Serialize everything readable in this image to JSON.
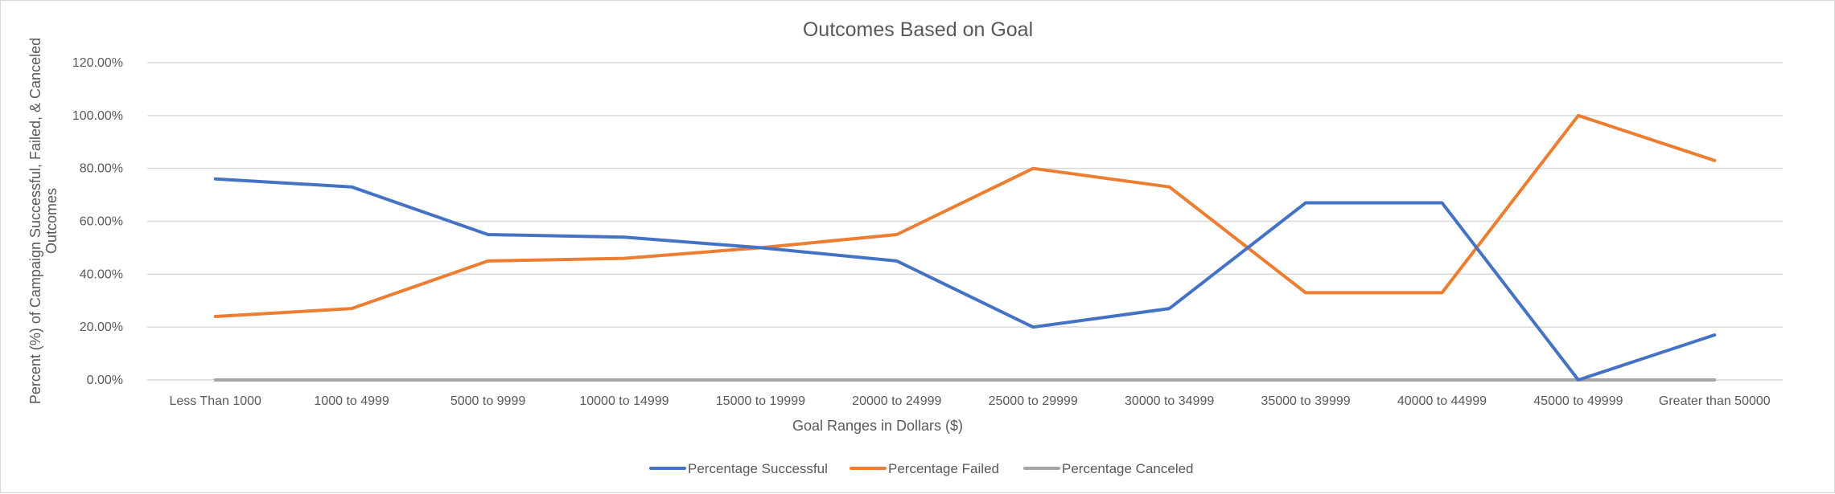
{
  "chart_data": {
    "type": "line",
    "title": "Outcomes Based on Goal",
    "xlabel": "Goal Ranges in Dollars ($)",
    "ylabel": "Percent (%) of Campaign Successful, Failed, & Canceled Outcomes",
    "ylim": [
      0,
      1.2
    ],
    "yticks": [
      0,
      0.2,
      0.4,
      0.6,
      0.8,
      1.0,
      1.2
    ],
    "ytick_labels": [
      "0.00%",
      "20.00%",
      "40.00%",
      "60.00%",
      "80.00%",
      "100.00%",
      "120.00%"
    ],
    "grid": true,
    "legend_position": "bottom",
    "categories": [
      "Less Than 1000",
      "1000 to 4999",
      "5000 to 9999",
      "10000 to 14999",
      "15000 to 19999",
      "20000 to 24999",
      "25000 to 29999",
      "30000 to 34999",
      "35000 to 39999",
      "40000 to 44999",
      "45000 to 49999",
      "Greater than 50000"
    ],
    "series": [
      {
        "name": "Percentage Successful",
        "color": "#4472c4",
        "values": [
          0.76,
          0.73,
          0.55,
          0.54,
          0.5,
          0.45,
          0.2,
          0.27,
          0.67,
          0.67,
          0.0,
          0.17
        ]
      },
      {
        "name": "Percentage Failed",
        "color": "#ed7d31",
        "values": [
          0.24,
          0.27,
          0.45,
          0.46,
          0.5,
          0.55,
          0.8,
          0.73,
          0.33,
          0.33,
          1.0,
          0.83
        ]
      },
      {
        "name": "Percentage Canceled",
        "color": "#a5a5a5",
        "values": [
          0,
          0,
          0,
          0,
          0,
          0,
          0,
          0,
          0,
          0,
          0,
          0
        ]
      }
    ]
  }
}
